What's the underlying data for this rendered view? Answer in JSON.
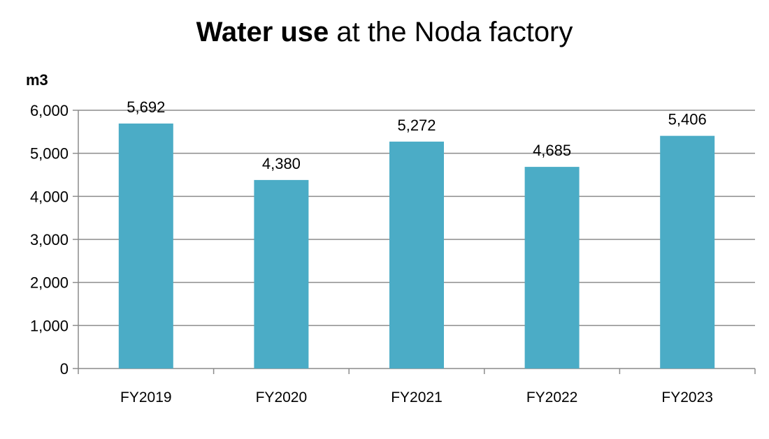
{
  "chart_data": {
    "type": "bar",
    "title_bold": "Water use",
    "title_rest": " at the Noda factory",
    "ylabel": "m3",
    "xlabel": "",
    "categories": [
      "FY2019",
      "FY2020",
      "FY2021",
      "FY2022",
      "FY2023"
    ],
    "values": [
      5692,
      4380,
      5272,
      4685,
      5406
    ],
    "data_labels": [
      "5,692",
      "4,380",
      "5,272",
      "4,685",
      "5,406"
    ],
    "ylim": [
      0,
      6000
    ],
    "yticks": [
      0,
      1000,
      2000,
      3000,
      4000,
      5000,
      6000
    ],
    "ytick_labels": [
      "0",
      "1,000",
      "2,000",
      "3,000",
      "4,000",
      "5,000",
      "6,000"
    ],
    "grid": true,
    "legend": "none",
    "colors": {
      "bar": "#4BACC6",
      "grid": "#8c8c8c",
      "axis": "#8c8c8c"
    }
  }
}
